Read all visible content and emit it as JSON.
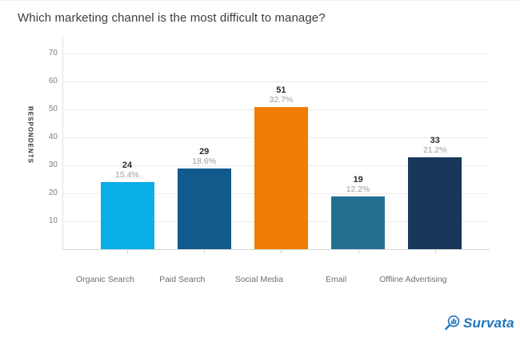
{
  "title": "Which marketing channel is the most difficult to manage?",
  "y_axis": {
    "label": "RESPONDENTS",
    "ticks": [
      10,
      20,
      30,
      40,
      50,
      60,
      70
    ]
  },
  "chart_data": {
    "type": "bar",
    "title": "Which marketing channel is the most difficult to manage?",
    "xlabel": "",
    "ylabel": "RESPONDENTS",
    "categories": [
      "Organic Search",
      "Paid Search",
      "Social Media",
      "Email",
      "Offline Advertising"
    ],
    "values": [
      24,
      29,
      51,
      19,
      33
    ],
    "percent_labels": [
      "15.4%",
      "18.6%",
      "32.7%",
      "12.2%",
      "21.2%"
    ],
    "bar_colors": [
      "#0aaee9",
      "#115a8c",
      "#ef7d06",
      "#236f91",
      "#17375b"
    ],
    "ylim": [
      0,
      75
    ],
    "grid": true,
    "legend": false
  },
  "branding": {
    "logo_text": "Survata",
    "logo_color": "#1e75bd",
    "icon": "magnifier-barchart-icon"
  }
}
